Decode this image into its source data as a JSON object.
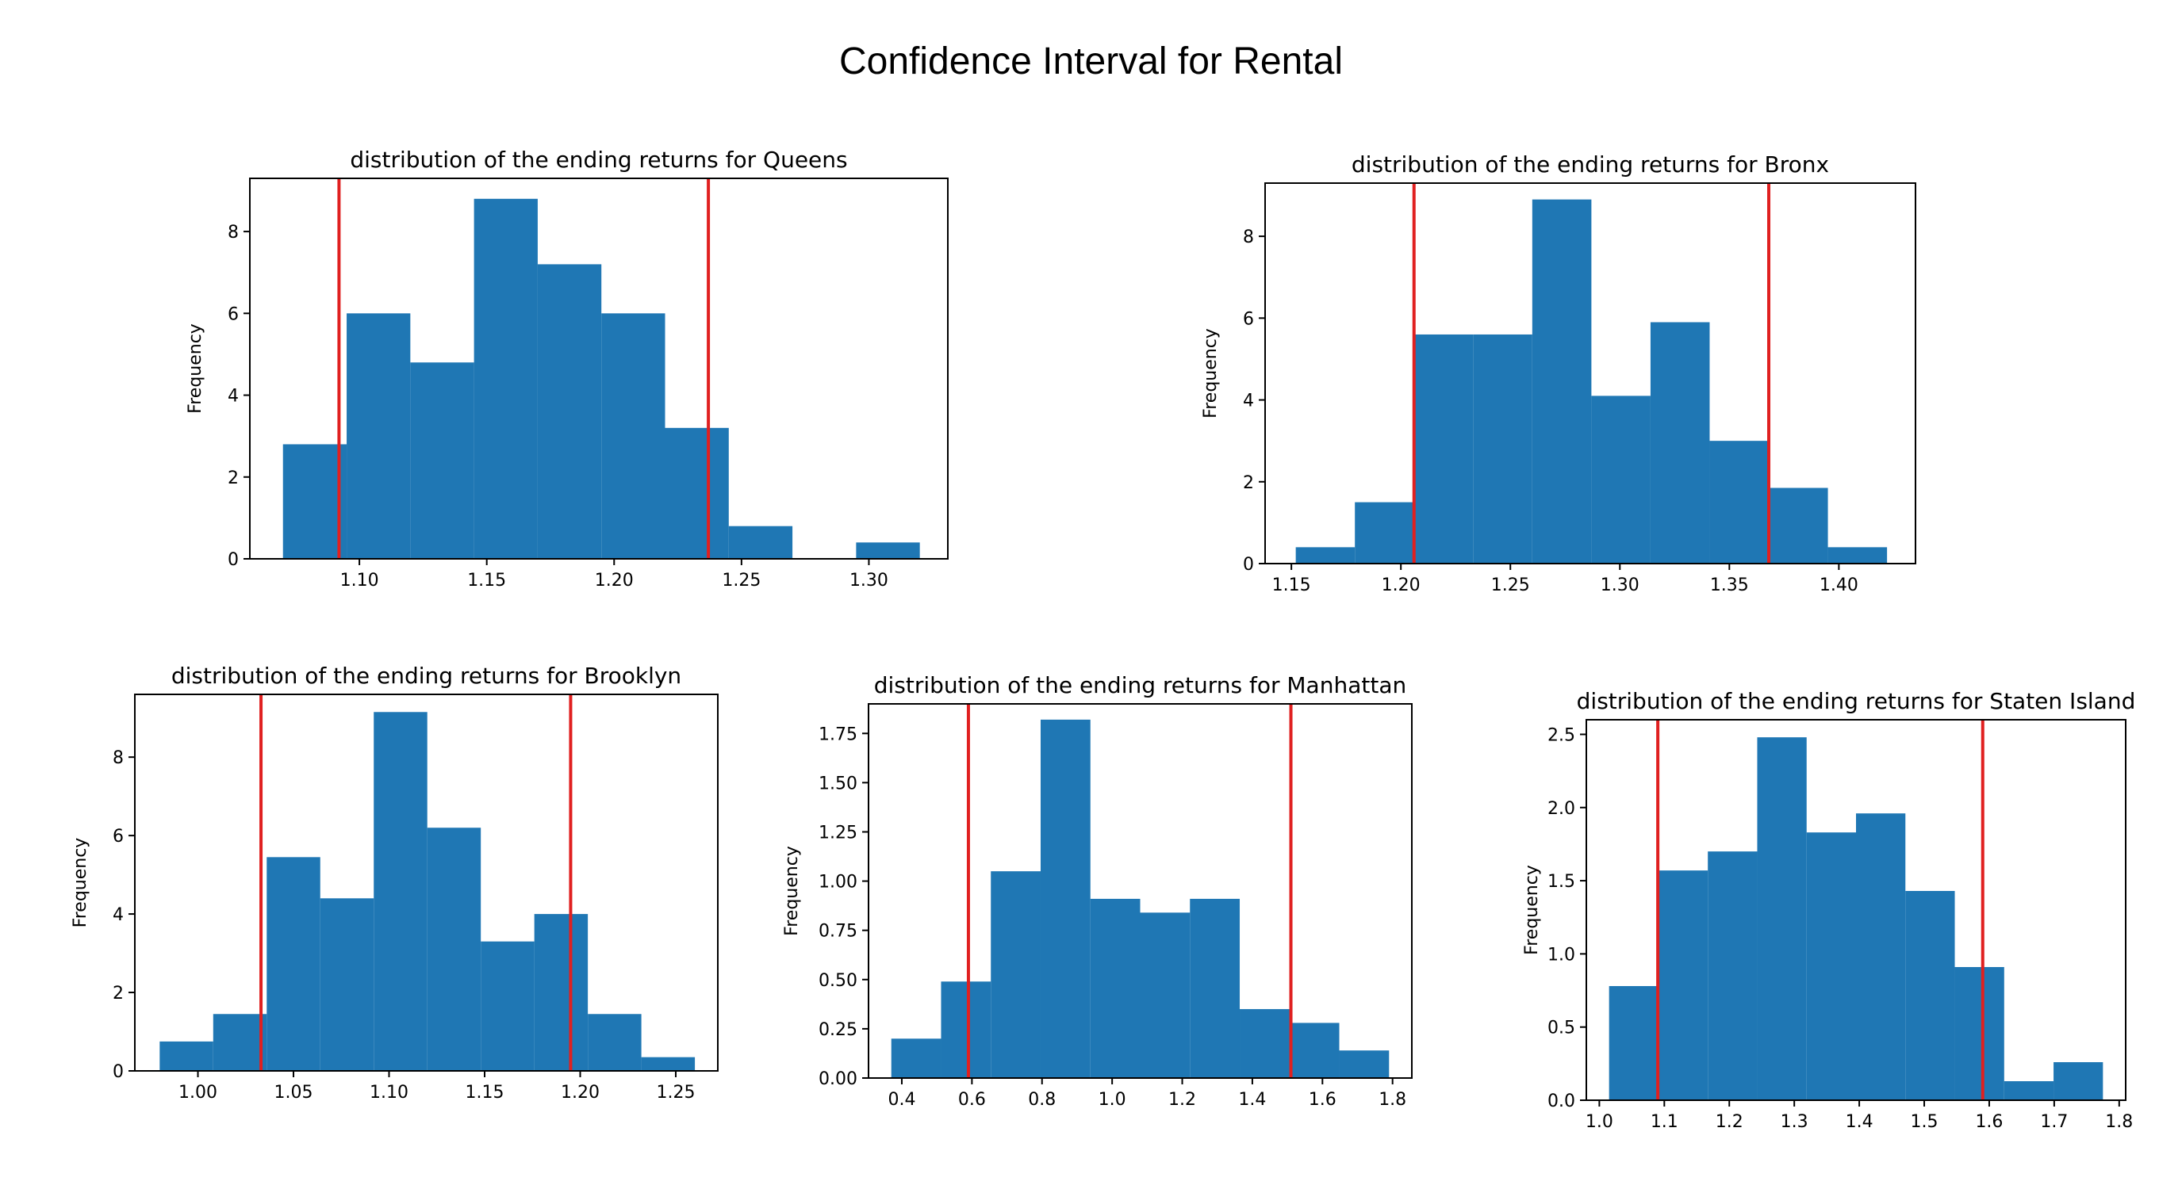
{
  "title": "Confidence Interval for Rental",
  "colors": {
    "bar": "#1f77b4",
    "ci_line": "#e02020",
    "axes": "#000000"
  },
  "chart_data": [
    {
      "type": "bar",
      "title": "distribution of the ending returns for Queens",
      "xlabel": "",
      "ylabel": "Frequency",
      "bin_edges": [
        1.07,
        1.095,
        1.12,
        1.145,
        1.17,
        1.195,
        1.22,
        1.245,
        1.27,
        1.295,
        1.32
      ],
      "values": [
        2.8,
        6.0,
        4.8,
        8.8,
        7.2,
        6.0,
        3.2,
        0.8,
        0.0,
        0.4
      ],
      "ci_lines": [
        1.092,
        1.237
      ],
      "xlim": [
        1.057,
        1.331
      ],
      "ylim": [
        0,
        9.3
      ],
      "xticks": [
        1.1,
        1.15,
        1.2,
        1.25,
        1.3
      ],
      "xtick_labels": [
        "1.10",
        "1.15",
        "1.20",
        "1.25",
        "1.30"
      ],
      "yticks": [
        0,
        2,
        4,
        6,
        8
      ],
      "ytick_labels": [
        "0",
        "2",
        "4",
        "6",
        "8"
      ],
      "grid": false
    },
    {
      "type": "bar",
      "title": "distribution of the ending returns for Bronx",
      "xlabel": "",
      "ylabel": "Frequency",
      "bin_edges": [
        1.152,
        1.179,
        1.206,
        1.233,
        1.26,
        1.287,
        1.314,
        1.341,
        1.368,
        1.395,
        1.422
      ],
      "values": [
        0.4,
        1.5,
        5.6,
        5.6,
        8.9,
        4.1,
        5.9,
        3.0,
        1.85,
        0.4
      ],
      "ci_lines": [
        1.206,
        1.368
      ],
      "xlim": [
        1.138,
        1.435
      ],
      "ylim": [
        0,
        9.3
      ],
      "xticks": [
        1.15,
        1.2,
        1.25,
        1.3,
        1.35,
        1.4
      ],
      "xtick_labels": [
        "1.15",
        "1.20",
        "1.25",
        "1.30",
        "1.35",
        "1.40"
      ],
      "yticks": [
        0,
        2,
        4,
        6,
        8
      ],
      "ytick_labels": [
        "0",
        "2",
        "4",
        "6",
        "8"
      ],
      "grid": false
    },
    {
      "type": "bar",
      "title": "distribution of the ending returns for Brooklyn",
      "xlabel": "",
      "ylabel": "Frequency",
      "bin_edges": [
        0.98,
        1.008,
        1.036,
        1.064,
        1.092,
        1.12,
        1.148,
        1.176,
        1.204,
        1.232,
        1.26
      ],
      "values": [
        0.75,
        1.45,
        5.45,
        4.4,
        9.15,
        6.2,
        3.3,
        4.0,
        1.45,
        0.35
      ],
      "ci_lines": [
        1.033,
        1.195
      ],
      "xlim": [
        0.967,
        1.272
      ],
      "ylim": [
        0,
        9.6
      ],
      "xticks": [
        1.0,
        1.05,
        1.1,
        1.15,
        1.2,
        1.25
      ],
      "xtick_labels": [
        "1.00",
        "1.05",
        "1.10",
        "1.15",
        "1.20",
        "1.25"
      ],
      "yticks": [
        0,
        2,
        4,
        6,
        8
      ],
      "ytick_labels": [
        "0",
        "2",
        "4",
        "6",
        "8"
      ],
      "grid": false
    },
    {
      "type": "bar",
      "title": "distribution of the ending returns for Manhattan",
      "xlabel": "",
      "ylabel": "Frequency",
      "bin_edges": [
        0.37,
        0.512,
        0.654,
        0.796,
        0.938,
        1.08,
        1.222,
        1.364,
        1.506,
        1.648,
        1.79
      ],
      "values": [
        0.2,
        0.49,
        1.05,
        1.82,
        0.91,
        0.84,
        0.91,
        0.35,
        0.28,
        0.14
      ],
      "ci_lines": [
        0.59,
        1.51
      ],
      "xlim": [
        0.305,
        1.855
      ],
      "ylim": [
        0,
        1.9
      ],
      "xticks": [
        0.4,
        0.6,
        0.8,
        1.0,
        1.2,
        1.4,
        1.6,
        1.8
      ],
      "xtick_labels": [
        "0.4",
        "0.6",
        "0.8",
        "1.0",
        "1.2",
        "1.4",
        "1.6",
        "1.8"
      ],
      "yticks": [
        0,
        0.25,
        0.5,
        0.75,
        1.0,
        1.25,
        1.5,
        1.75
      ],
      "ytick_labels": [
        "0.00",
        "0.25",
        "0.50",
        "0.75",
        "1.00",
        "1.25",
        "1.50",
        "1.75"
      ],
      "grid": false
    },
    {
      "type": "bar",
      "title": "distribution of the ending returns for Staten Island",
      "xlabel": "",
      "ylabel": "Frequency",
      "bin_edges": [
        1.015,
        1.091,
        1.167,
        1.243,
        1.319,
        1.395,
        1.471,
        1.547,
        1.623,
        1.699,
        1.775
      ],
      "values": [
        0.78,
        1.57,
        1.7,
        2.48,
        1.83,
        1.96,
        1.43,
        0.91,
        0.13,
        0.26
      ],
      "ci_lines": [
        1.09,
        1.59
      ],
      "xlim": [
        0.98,
        1.81
      ],
      "ylim": [
        0,
        2.6
      ],
      "xticks": [
        1.0,
        1.1,
        1.2,
        1.3,
        1.4,
        1.5,
        1.6,
        1.7,
        1.8
      ],
      "xtick_labels": [
        "1.0",
        "1.1",
        "1.2",
        "1.3",
        "1.4",
        "1.5",
        "1.6",
        "1.7",
        "1.8"
      ],
      "yticks": [
        0,
        0.5,
        1.0,
        1.5,
        2.0,
        2.5
      ],
      "ytick_labels": [
        "0.0",
        "0.5",
        "1.0",
        "1.5",
        "2.0",
        "2.5"
      ],
      "grid": false
    }
  ]
}
